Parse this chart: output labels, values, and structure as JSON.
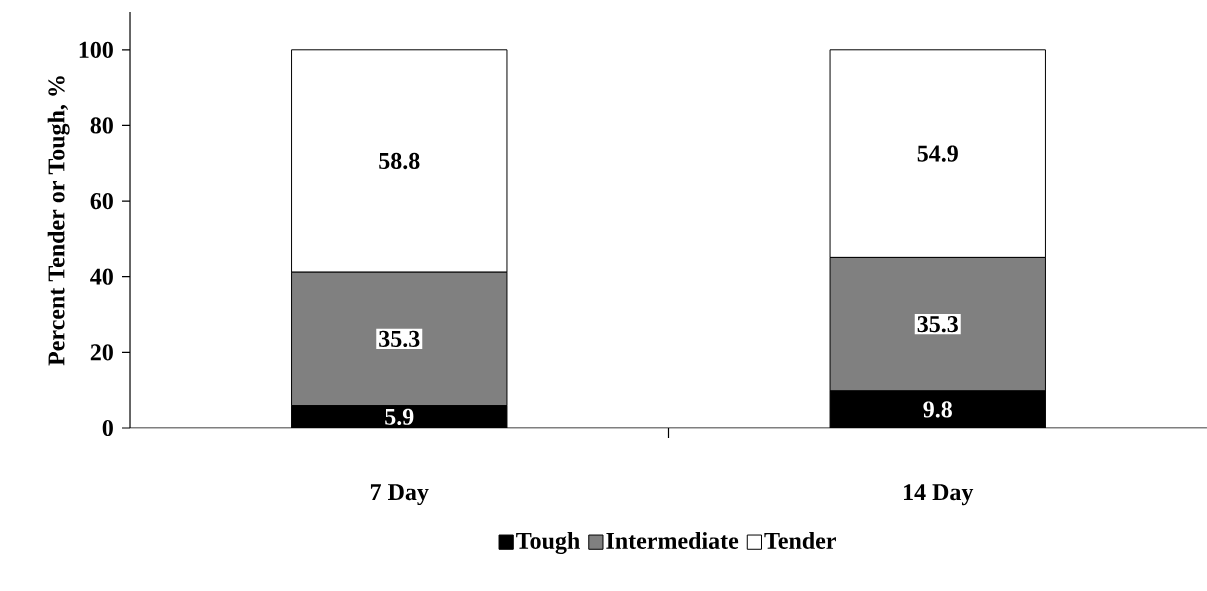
{
  "chart_data": {
    "type": "bar",
    "stacked": true,
    "ylabel": "Percent Tender or Tough, %",
    "categories": [
      "7 Day",
      "14 Day"
    ],
    "series": [
      {
        "name": "Tough",
        "color": "#000000",
        "values": [
          5.9,
          9.8
        ]
      },
      {
        "name": "Intermediate",
        "color": "#808080",
        "values": [
          35.3,
          35.3
        ]
      },
      {
        "name": "Tender",
        "color": "#ffffff",
        "values": [
          58.8,
          54.9
        ]
      }
    ],
    "ylim": [
      0,
      110
    ],
    "yticks": [
      0,
      20,
      40,
      60,
      80,
      100
    ],
    "grid": false,
    "legend": "bottom",
    "data_labels": true
  }
}
